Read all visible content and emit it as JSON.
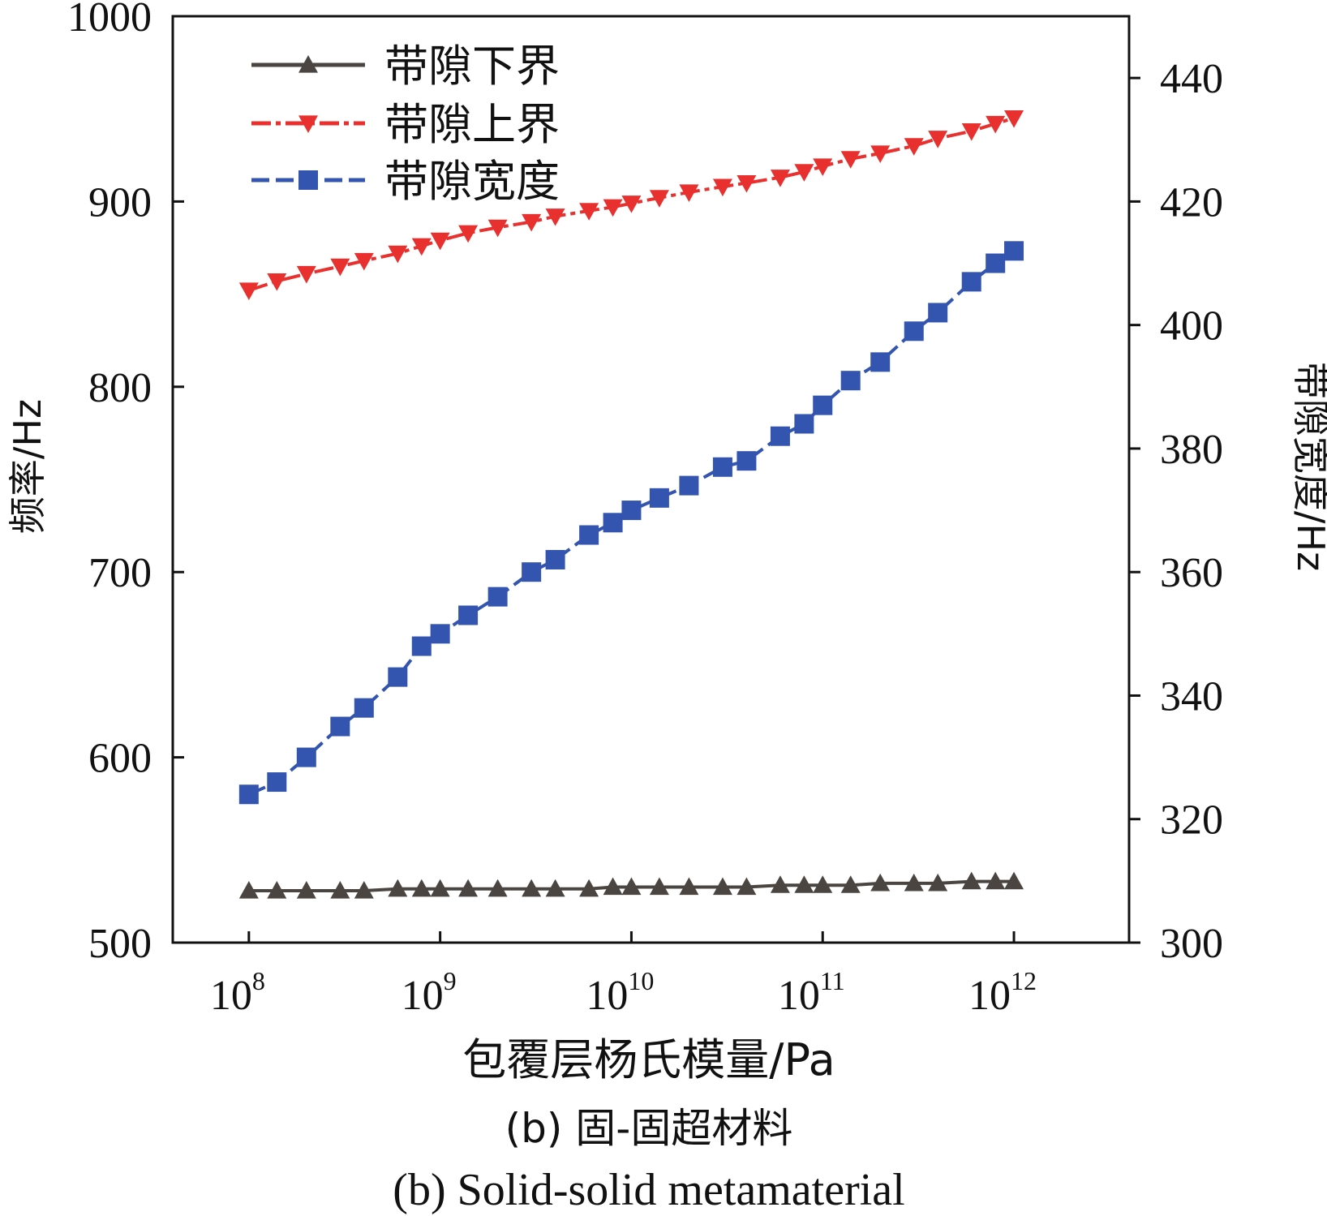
{
  "chart_data": {
    "type": "line",
    "xlabel": "包覆层杨氏模量/Pa",
    "ylabel_left": "频率/Hz",
    "ylabel_right": "带隙宽度/Hz",
    "x_scale": "log",
    "xlim": [
      40000000,
      4000000000000
    ],
    "ylim_left": [
      500,
      1000
    ],
    "ylim_right": [
      300,
      450
    ],
    "x_ticks": [
      100000000,
      1000000000,
      10000000000,
      100000000000,
      1000000000000
    ],
    "x_tick_labels": [
      {
        "base": "10",
        "exp": "8"
      },
      {
        "base": "10",
        "exp": "9"
      },
      {
        "base": "10",
        "exp": "10"
      },
      {
        "base": "10",
        "exp": "11"
      },
      {
        "base": "10",
        "exp": "12"
      }
    ],
    "y_ticks_left": [
      500,
      600,
      700,
      800,
      900,
      1000
    ],
    "y_ticks_right": [
      300,
      320,
      340,
      360,
      380,
      400,
      420,
      440
    ],
    "x": [
      100000000,
      140000000,
      200000000,
      300000000,
      400000000,
      600000000,
      800000000,
      1000000000,
      1400000000,
      2000000000,
      3000000000,
      4000000000,
      6000000000,
      8000000000,
      10000000000,
      14000000000,
      20000000000,
      30000000000,
      40000000000,
      60000000000,
      80000000000,
      100000000000,
      140000000000,
      200000000000,
      300000000000,
      400000000000,
      600000000000,
      800000000000,
      1000000000000
    ],
    "series": [
      {
        "name": "带隙下界",
        "axis": "left",
        "color": "#4a4540",
        "marker": "triangle-up",
        "line": "solid",
        "values": [
          528,
          528,
          528,
          528,
          528,
          529,
          529,
          529,
          529,
          529,
          529,
          529,
          529,
          530,
          530,
          530,
          530,
          530,
          530,
          531,
          531,
          531,
          531,
          532,
          532,
          532,
          533,
          533,
          533
        ]
      },
      {
        "name": "带隙上界",
        "axis": "left",
        "color": "#e8302f",
        "marker": "triangle-down",
        "line": "dashdot",
        "values": [
          852,
          857,
          861,
          865,
          868,
          872,
          876,
          879,
          883,
          886,
          889,
          892,
          895,
          897,
          899,
          902,
          905,
          908,
          910,
          913,
          916,
          919,
          923,
          926,
          930,
          934,
          938,
          942,
          945
        ]
      },
      {
        "name": "带隙宽度",
        "axis": "right",
        "color": "#3355b0",
        "marker": "square",
        "line": "dashed",
        "values": [
          324,
          326,
          330,
          335,
          338,
          343,
          348,
          350,
          353,
          356,
          360,
          362,
          366,
          368,
          370,
          372,
          374,
          377,
          378,
          382,
          384,
          387,
          391,
          394,
          399,
          402,
          407,
          410,
          412
        ]
      }
    ]
  },
  "caption": {
    "line1": "(b) 固-固超材料",
    "line2": "(b) Solid-solid metamaterial"
  }
}
